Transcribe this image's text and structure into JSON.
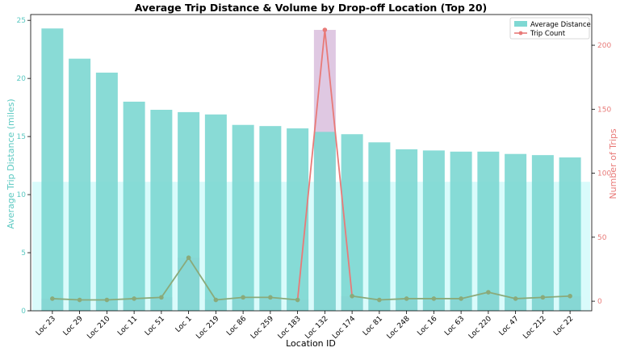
{
  "chart_data": {
    "type": "bar",
    "title": "Average Trip Distance & Volume by Drop-off Location (Top 20)",
    "xlabel": "Location ID",
    "ylabel": "Average Trip Distance (miles)",
    "y2label": "Number of Trips",
    "categories": [
      "Loc 23",
      "Loc 29",
      "Loc 210",
      "Loc 11",
      "Loc 51",
      "Loc 1",
      "Loc 219",
      "Loc 86",
      "Loc 259",
      "Loc 183",
      "Loc 132",
      "Loc 174",
      "Loc 81",
      "Loc 248",
      "Loc 16",
      "Loc 63",
      "Loc 220",
      "Loc 47",
      "Loc 212",
      "Loc 22"
    ],
    "ylim": [
      0,
      25.5
    ],
    "y2lim": [
      -7.5,
      224
    ],
    "yticks": [
      0,
      5,
      10,
      15,
      20,
      25
    ],
    "y2ticks": [
      0,
      50,
      100,
      150,
      200
    ],
    "series": [
      {
        "name": "Average Distance",
        "axis": "left",
        "kind": "bar",
        "values": [
          24.3,
          21.7,
          20.5,
          18.0,
          17.3,
          17.1,
          16.9,
          16.0,
          15.9,
          15.7,
          15.4,
          15.2,
          14.5,
          13.9,
          13.8,
          13.7,
          13.7,
          13.5,
          13.4,
          13.2
        ]
      },
      {
        "name": "Trip Count",
        "axis": "right",
        "kind": "line",
        "values": [
          2,
          1,
          1,
          2,
          3,
          34,
          1,
          3,
          3,
          1,
          212,
          4,
          1,
          2,
          2,
          2,
          7,
          2,
          3,
          4
        ]
      }
    ],
    "legend": {
      "placement": "top-right",
      "entries": [
        "Average Distance",
        "Trip Count"
      ]
    },
    "colors": {
      "bar": "#7fd8d3",
      "line": "#e87a78",
      "line_overlap": "#8aaa7a",
      "left_axis": "#5cc9c2",
      "right_axis": "#e87a78",
      "count_bar": "#c9a4cf",
      "count_bar_bg": "#d9fbfb"
    }
  }
}
